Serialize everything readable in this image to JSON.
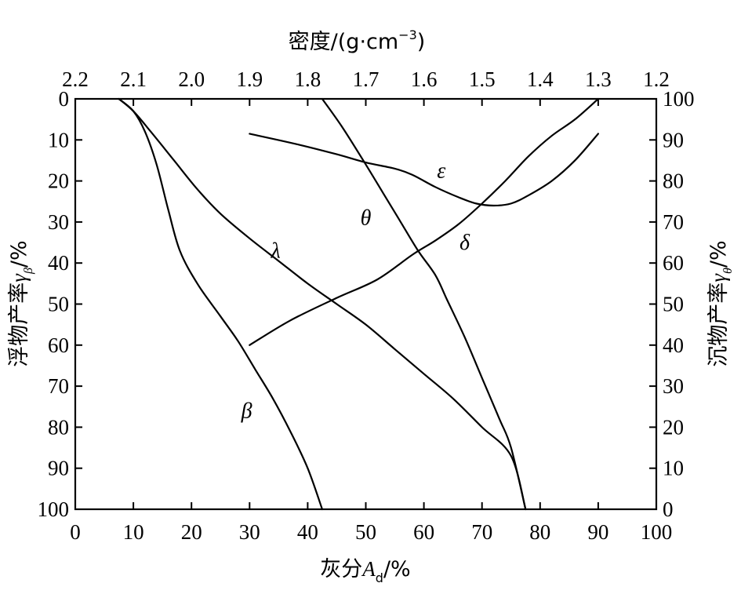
{
  "chart_data": {
    "type": "line",
    "axes": {
      "bottom": {
        "label_prefix": "灰分",
        "label_var": "A",
        "label_sub": "d",
        "label_suffix": "/%",
        "range": [
          0,
          100
        ],
        "ticks": [
          0,
          10,
          20,
          30,
          40,
          50,
          60,
          70,
          80,
          90,
          100
        ]
      },
      "left": {
        "label_prefix": "浮物产率",
        "label_var": "γ",
        "label_sub": "β",
        "label_suffix": "/%",
        "range": [
          0,
          100
        ],
        "reversed": true,
        "ticks": [
          0,
          10,
          20,
          30,
          40,
          50,
          60,
          70,
          80,
          90,
          100
        ]
      },
      "right": {
        "label_prefix": "沉物产率",
        "label_var": "γ",
        "label_sub": "θ",
        "label_suffix": "/%",
        "range": [
          0,
          100
        ],
        "ticks": [
          100,
          90,
          80,
          70,
          60,
          50,
          40,
          30,
          20,
          10,
          0
        ]
      },
      "top": {
        "label_prefix": "密度/(g·cm",
        "label_sup": "−3",
        "label_suffix": ")",
        "range": [
          2.2,
          1.2
        ],
        "ticks": [
          "2.2",
          "2.1",
          "2.0",
          "1.9",
          "1.8",
          "1.7",
          "1.6",
          "1.5",
          "1.4",
          "1.3",
          "1.2"
        ]
      }
    },
    "series": [
      {
        "name": "β",
        "axis": "left",
        "points": [
          [
            7.5,
            0
          ],
          [
            10,
            3
          ],
          [
            12,
            8
          ],
          [
            14,
            16
          ],
          [
            16,
            27
          ],
          [
            18,
            37
          ],
          [
            21,
            45
          ],
          [
            25,
            53
          ],
          [
            28,
            59
          ],
          [
            31,
            66
          ],
          [
            34,
            73
          ],
          [
            37,
            81
          ],
          [
            40,
            90
          ],
          [
            42.5,
            100
          ]
        ]
      },
      {
        "name": "λ",
        "axis": "left",
        "points": [
          [
            7.5,
            0
          ],
          [
            10,
            3
          ],
          [
            13,
            8
          ],
          [
            17,
            15
          ],
          [
            21,
            22
          ],
          [
            25,
            28
          ],
          [
            30,
            34
          ],
          [
            35,
            39.5
          ],
          [
            40,
            45
          ],
          [
            45,
            50
          ],
          [
            50,
            55
          ],
          [
            55,
            61
          ],
          [
            60,
            67
          ],
          [
            65,
            73
          ],
          [
            70,
            80
          ],
          [
            75,
            87
          ],
          [
            77.5,
            100
          ]
        ]
      },
      {
        "name": "θ",
        "axis": "left",
        "points": [
          [
            42.5,
            0
          ],
          [
            46,
            7
          ],
          [
            50,
            16
          ],
          [
            53,
            23
          ],
          [
            56,
            30
          ],
          [
            59,
            37
          ],
          [
            62,
            43
          ],
          [
            64,
            49
          ],
          [
            67,
            58
          ],
          [
            70,
            68
          ],
          [
            73,
            78
          ],
          [
            75,
            85
          ],
          [
            77.5,
            100
          ]
        ]
      },
      {
        "name": "δ",
        "axis": "right",
        "points": [
          [
            30,
            40
          ],
          [
            37,
            46
          ],
          [
            45,
            51.5
          ],
          [
            52,
            56
          ],
          [
            58,
            62
          ],
          [
            62,
            65.5
          ],
          [
            66,
            69.5
          ],
          [
            70,
            74.5
          ],
          [
            74,
            80
          ],
          [
            78,
            86
          ],
          [
            82,
            91
          ],
          [
            86,
            95
          ],
          [
            90,
            100
          ]
        ]
      },
      {
        "name": "ε",
        "axis": "left",
        "points": [
          [
            30,
            8.5
          ],
          [
            38,
            11
          ],
          [
            45,
            13.5
          ],
          [
            50,
            15.5
          ],
          [
            55,
            17
          ],
          [
            58,
            18.5
          ],
          [
            62,
            21.5
          ],
          [
            66,
            24
          ],
          [
            69,
            25.5
          ],
          [
            72,
            26
          ],
          [
            75,
            25.5
          ],
          [
            78,
            23.5
          ],
          [
            82,
            20
          ],
          [
            86,
            15
          ],
          [
            90,
            8.5
          ]
        ]
      }
    ],
    "curve_labels": [
      {
        "text": "β",
        "x": 29.5,
        "y": 76
      },
      {
        "text": "λ",
        "x": 34.5,
        "y": 37
      },
      {
        "text": "θ",
        "x": 50,
        "y": 29
      },
      {
        "text": "δ",
        "x": 67,
        "y": 35
      },
      {
        "text": "ε",
        "x": 63,
        "y": 17.5
      }
    ]
  }
}
